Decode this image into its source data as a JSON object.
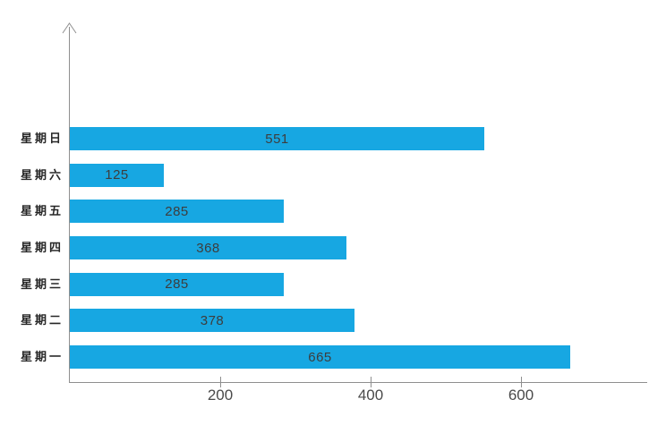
{
  "chart_data": {
    "type": "bar",
    "orientation": "horizontal",
    "title": "",
    "xlabel": "",
    "ylabel": "",
    "row_order": "top-to-bottom",
    "categories": [
      "星期日",
      "星期六",
      "星期五",
      "星期四",
      "星期三",
      "星期二",
      "星期一"
    ],
    "values": [
      551,
      125,
      285,
      368,
      285,
      378,
      665
    ],
    "x_ticks": [
      200,
      400,
      600
    ],
    "xlim": [
      0,
      768
    ],
    "grid": false,
    "legend": false,
    "value_labels": "centered-inside-bars",
    "colors": {
      "bar": "#17a7e2",
      "axis": "#8f8f8f",
      "value_label": "#3d3d3d",
      "tick_label": "#4a4a4a",
      "category_label": "#262626"
    }
  }
}
